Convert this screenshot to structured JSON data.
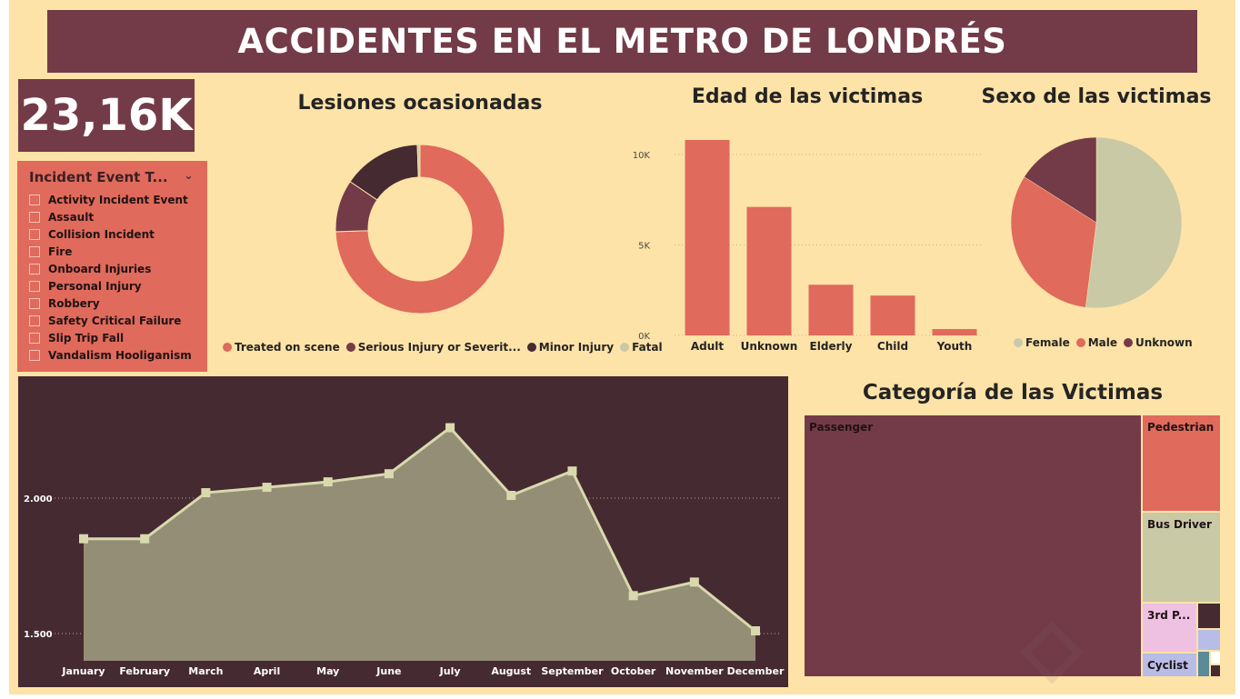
{
  "header": {
    "title": "ACCIDENTES EN EL METRO DE LONDRÉS"
  },
  "kpi": {
    "value": "23,16K"
  },
  "slicer": {
    "title": "Incident Event T...",
    "items": [
      "Activity Incident Event",
      "Assault",
      "Collision Incident",
      "Fire",
      "Onboard Injuries",
      "Personal Injury",
      "Robbery",
      "Safety Critical Failure",
      "Slip Trip Fall",
      "Vandalism Hooliganism"
    ]
  },
  "injuries": {
    "title": "Lesiones ocasionadas",
    "legend": [
      "Treated on scene",
      "Serious Injury or Severit...",
      "Minor Injury",
      "Fatal"
    ]
  },
  "age": {
    "title": "Edad de las victimas"
  },
  "sex": {
    "title": "Sexo de las victimas",
    "legend": [
      "Female",
      "Male",
      "Unknown"
    ]
  },
  "category": {
    "title": "Categoría de las Victimas"
  },
  "colors": {
    "background": "#fde3a7",
    "maroon": "#733b48",
    "coral": "#e06a5b",
    "dark": "#452a31",
    "sage": "#c9c9a6",
    "line_fill": "#958e76",
    "line": "#d9d9ae",
    "pink": "#eec1e2",
    "lavender": "#b7bde6"
  },
  "chart_data": [
    {
      "type": "pie",
      "subtype": "donut",
      "title": "Lesiones ocasionadas",
      "categories": [
        "Treated on scene",
        "Serious Injury or Severit...",
        "Minor Injury",
        "Fatal"
      ],
      "values": [
        0.745,
        0.1,
        0.15,
        0.005
      ],
      "colors": [
        "#e06a5b",
        "#733b48",
        "#452a31",
        "#c9c9a6"
      ],
      "legend": "bottom"
    },
    {
      "type": "bar",
      "title": "Edad de las victimas",
      "categories": [
        "Adult",
        "Unknown",
        "Elderly",
        "Child",
        "Youth"
      ],
      "values": [
        10800,
        7100,
        2800,
        2200,
        350
      ],
      "ylim": [
        0,
        11000
      ],
      "yticks": [
        0,
        5000,
        10000
      ],
      "ytick_labels": [
        "0K",
        "5K",
        "10K"
      ],
      "grid": true,
      "color": "#e06a5b"
    },
    {
      "type": "pie",
      "title": "Sexo de las victimas",
      "categories": [
        "Female",
        "Male",
        "Unknown"
      ],
      "values": [
        0.52,
        0.32,
        0.16
      ],
      "colors": [
        "#c9c9a6",
        "#e06a5b",
        "#733b48"
      ],
      "legend": "bottom"
    },
    {
      "type": "area",
      "x": [
        "January",
        "February",
        "March",
        "April",
        "May",
        "June",
        "July",
        "August",
        "September",
        "October",
        "November",
        "December"
      ],
      "values": [
        1850,
        1850,
        2020,
        2040,
        2060,
        2090,
        2260,
        2010,
        2100,
        1640,
        1690,
        1510
      ],
      "ylim": [
        1400,
        2330
      ],
      "yticks": [
        1500,
        2000
      ],
      "ytick_labels": [
        "1.500",
        "2.000"
      ],
      "grid": true
    },
    {
      "type": "treemap",
      "title": "Categoría de las Victimas",
      "categories": [
        "Passenger",
        "Pedestrian",
        "Bus Driver",
        "3rd P...",
        "Cyclist"
      ],
      "values": [
        15800,
        2100,
        2100,
        1100,
        640
      ],
      "colors": [
        "#733b48",
        "#e06a5b",
        "#c9c9a6",
        "#eec1e2",
        "#b7bde6"
      ]
    }
  ]
}
